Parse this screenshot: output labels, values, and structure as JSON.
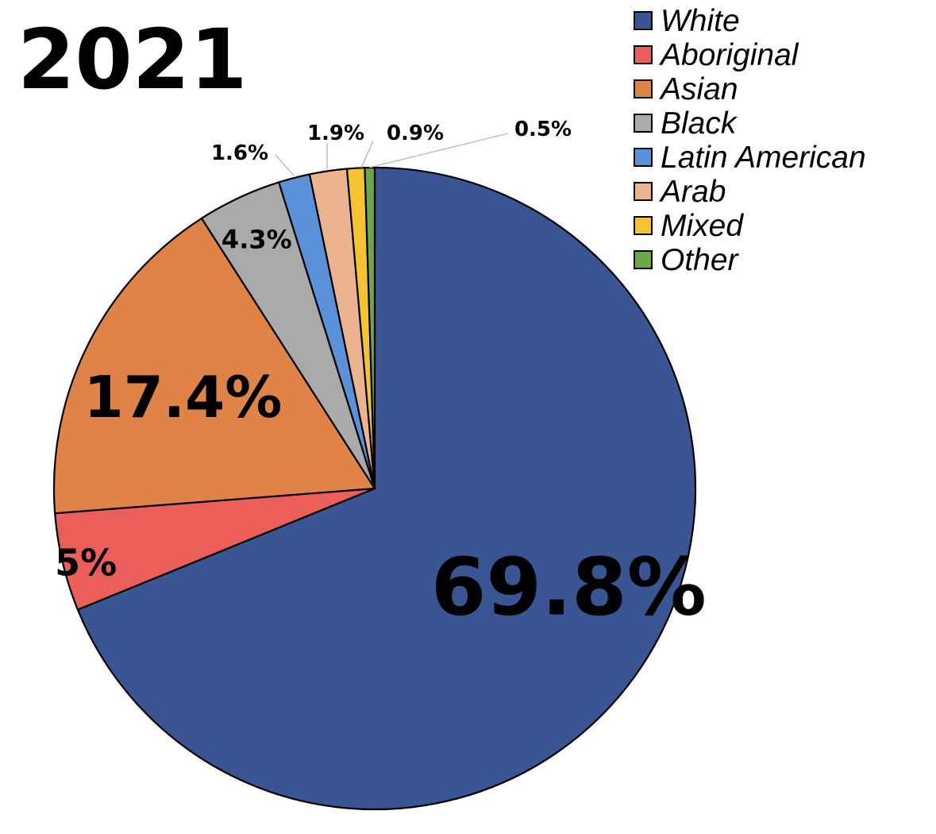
{
  "chart_data": {
    "type": "pie",
    "title": "2021",
    "legend_position": "top-right",
    "slices": [
      {
        "name": "White",
        "value": 69.8,
        "label": "69.8%",
        "color": "#3A5594"
      },
      {
        "name": "Aboriginal",
        "value": 5,
        "label": "5%",
        "color": "#EB5E5A"
      },
      {
        "name": "Asian",
        "value": 17.4,
        "label": "17.4%",
        "color": "#DF8446"
      },
      {
        "name": "Black",
        "value": 4.3,
        "label": "4.3%",
        "color": "#AAAAAA"
      },
      {
        "name": "Latin American",
        "value": 1.6,
        "label": "1.6%",
        "color": "#5A91D8"
      },
      {
        "name": "Arab",
        "value": 1.9,
        "label": "1.9%",
        "color": "#EBB48E"
      },
      {
        "name": "Mixed",
        "value": 0.9,
        "label": "0.9%",
        "color": "#F5C232"
      },
      {
        "name": "Other",
        "value": 0.5,
        "label": "0.5%",
        "color": "#6BA84A"
      }
    ]
  }
}
